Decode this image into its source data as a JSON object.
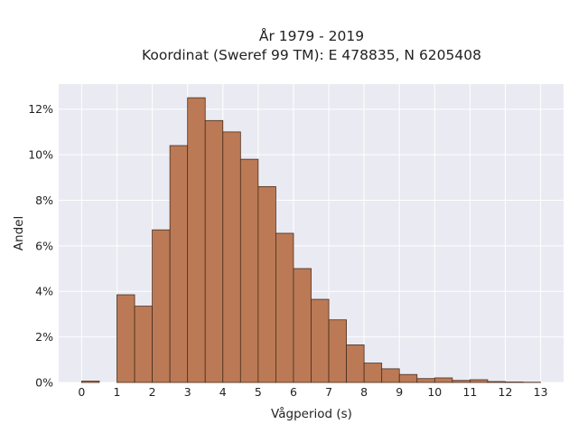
{
  "chart_data": {
    "type": "bar",
    "title_line1": "År 1979 - 2019",
    "title_line2": "Koordinat (Sweref 99 TM): E 478835, N 6205408",
    "xlabel": "Vågperiod (s)",
    "ylabel": "Andel",
    "bin_width": 0.5,
    "bins": [
      {
        "start": 0.0,
        "value": 0.06
      },
      {
        "start": 0.5,
        "value": 0.0
      },
      {
        "start": 1.0,
        "value": 3.85
      },
      {
        "start": 1.5,
        "value": 3.35
      },
      {
        "start": 2.0,
        "value": 6.7
      },
      {
        "start": 2.5,
        "value": 10.4
      },
      {
        "start": 3.0,
        "value": 12.5
      },
      {
        "start": 3.5,
        "value": 11.5
      },
      {
        "start": 4.0,
        "value": 11.0
      },
      {
        "start": 4.5,
        "value": 9.8
      },
      {
        "start": 5.0,
        "value": 8.6
      },
      {
        "start": 5.5,
        "value": 6.55
      },
      {
        "start": 6.0,
        "value": 5.0
      },
      {
        "start": 6.5,
        "value": 3.65
      },
      {
        "start": 7.0,
        "value": 2.75
      },
      {
        "start": 7.5,
        "value": 1.65
      },
      {
        "start": 8.0,
        "value": 0.85
      },
      {
        "start": 8.5,
        "value": 0.6
      },
      {
        "start": 9.0,
        "value": 0.35
      },
      {
        "start": 9.5,
        "value": 0.17
      },
      {
        "start": 10.0,
        "value": 0.2
      },
      {
        "start": 10.5,
        "value": 0.09
      },
      {
        "start": 11.0,
        "value": 0.12
      },
      {
        "start": 11.5,
        "value": 0.04
      },
      {
        "start": 12.0,
        "value": 0.02
      },
      {
        "start": 12.5,
        "value": 0.01
      }
    ],
    "x_ticks": [
      "0",
      "1",
      "2",
      "3",
      "4",
      "5",
      "6",
      "7",
      "8",
      "9",
      "10",
      "11",
      "12",
      "13"
    ],
    "x_tick_values": [
      0,
      1,
      2,
      3,
      4,
      5,
      6,
      7,
      8,
      9,
      10,
      11,
      12,
      13
    ],
    "y_ticks": [
      "0%",
      "2%",
      "4%",
      "6%",
      "8%",
      "10%",
      "12%"
    ],
    "y_tick_values": [
      0,
      2,
      4,
      6,
      8,
      10,
      12
    ],
    "xlim": [
      -0.65,
      13.65
    ],
    "ylim": [
      0,
      13.1
    ],
    "grid": true,
    "colors": {
      "plot_background": "#eaeaf2",
      "bar_fill": "#bb7a55",
      "bar_edge": "#4a2e1f",
      "grid": "#ffffff"
    }
  }
}
